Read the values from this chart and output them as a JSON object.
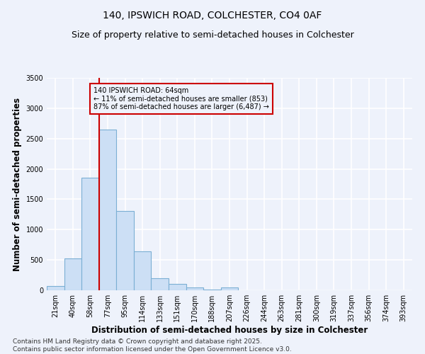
{
  "title1": "140, IPSWICH ROAD, COLCHESTER, CO4 0AF",
  "title2": "Size of property relative to semi-detached houses in Colchester",
  "xlabel": "Distribution of semi-detached houses by size in Colchester",
  "ylabel": "Number of semi-detached properties",
  "categories": [
    "21sqm",
    "40sqm",
    "58sqm",
    "77sqm",
    "95sqm",
    "114sqm",
    "133sqm",
    "151sqm",
    "170sqm",
    "188sqm",
    "207sqm",
    "226sqm",
    "244sqm",
    "263sqm",
    "281sqm",
    "300sqm",
    "319sqm",
    "337sqm",
    "356sqm",
    "374sqm",
    "393sqm"
  ],
  "bar_heights": [
    75,
    530,
    1850,
    2650,
    1310,
    640,
    200,
    100,
    50,
    10,
    50,
    5,
    5,
    3,
    2,
    1,
    1,
    1,
    1,
    1,
    1
  ],
  "bar_color": "#ccdff5",
  "bar_edge_color": "#7bafd4",
  "redline_index": 2,
  "annotation_line1": "140 IPSWICH ROAD: 64sqm",
  "annotation_line2": "← 11% of semi-detached houses are smaller (853)",
  "annotation_line3": "87% of semi-detached houses are larger (6,487) →",
  "ylim": [
    0,
    3500
  ],
  "yticks": [
    0,
    500,
    1000,
    1500,
    2000,
    2500,
    3000,
    3500
  ],
  "footer1": "Contains HM Land Registry data © Crown copyright and database right 2025.",
  "footer2": "Contains public sector information licensed under the Open Government Licence v3.0.",
  "background_color": "#eef2fb",
  "grid_color": "#ffffff",
  "annotation_box_edge": "#cc0000",
  "redline_color": "#cc0000",
  "title_fontsize": 10,
  "subtitle_fontsize": 9,
  "tick_fontsize": 7,
  "axis_label_fontsize": 8.5,
  "footer_fontsize": 6.5
}
